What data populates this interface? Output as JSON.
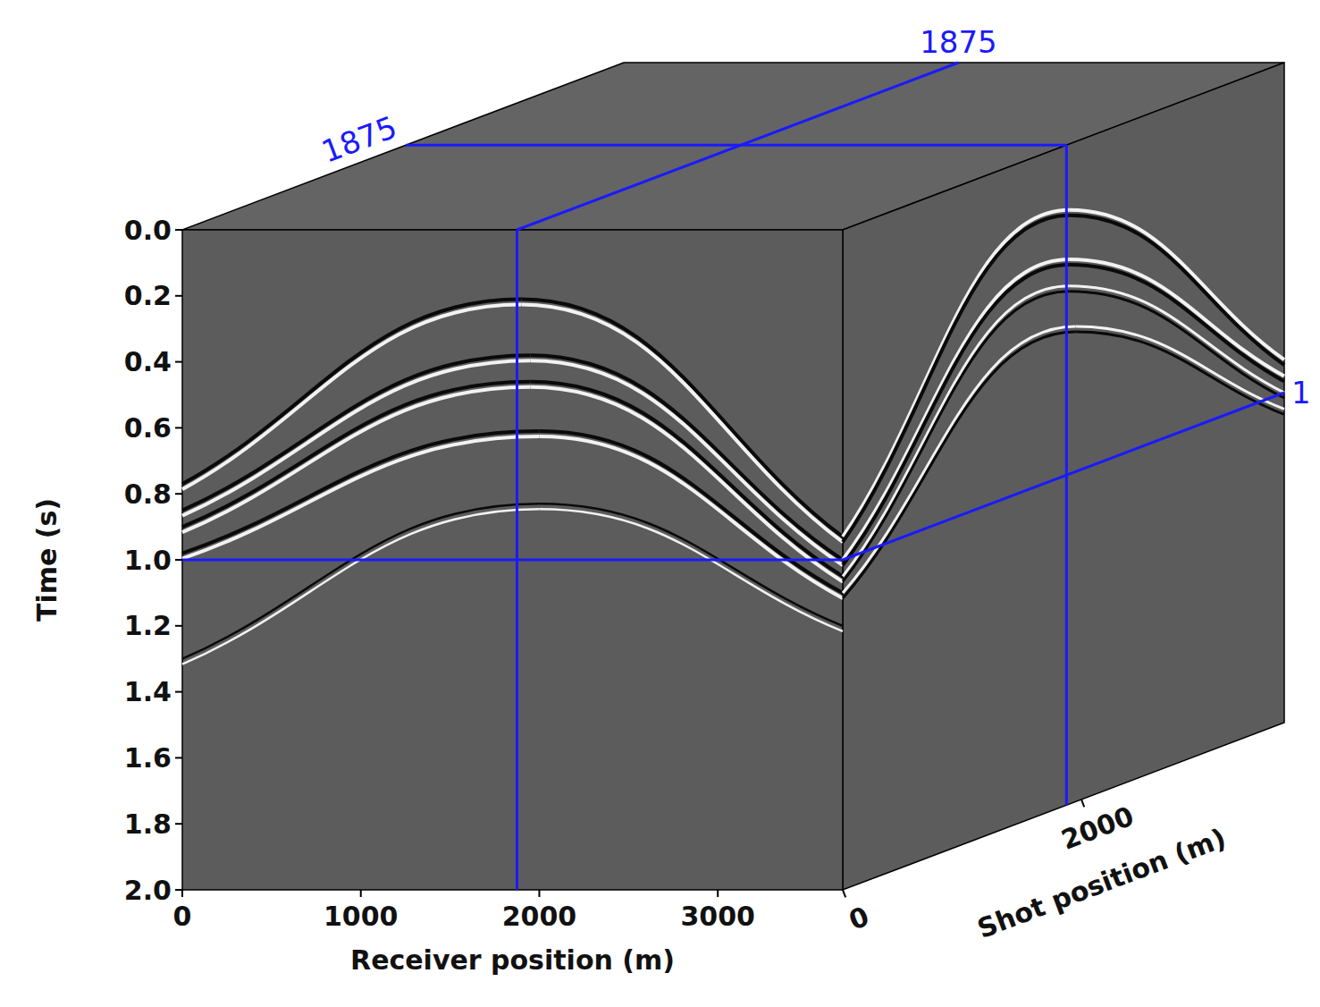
{
  "chart_data": {
    "type": "seismic_cube",
    "x_label": "Receiver position (m)",
    "y_label": "Time (s)",
    "z_label": "Shot position (m)",
    "xlim": [
      0,
      3700
    ],
    "xticks": [
      0,
      1000,
      2000,
      3000
    ],
    "ylim": [
      0,
      2
    ],
    "yticks": [
      {
        "value": 0,
        "label": "0.0"
      },
      0.2,
      0.4,
      0.6,
      0.8,
      {
        "value": 1,
        "label": "1.0"
      },
      1.2,
      1.4,
      1.6,
      1.8,
      {
        "value": 2,
        "label": "2.0"
      }
    ],
    "zlim": [
      0,
      3700
    ],
    "zticks": [
      0,
      2000
    ],
    "color": "#1a1aff",
    "slices": [
      {
        "axis": "receiver",
        "value": 1875,
        "label": "1875"
      },
      {
        "axis": "shot",
        "value": 1875,
        "label": "1875"
      },
      {
        "axis": "time",
        "value": 1,
        "label": "1"
      }
    ],
    "front_events": [
      {
        "apex_x": 1900,
        "apex_t": 0.21,
        "t_start": 0.77,
        "t_end": 0.93
      },
      {
        "apex_x": 1950,
        "apex_t": 0.38,
        "t_start": 0.85,
        "t_end": 1.0
      },
      {
        "apex_x": 1950,
        "apex_t": 0.46,
        "t_start": 0.9,
        "t_end": 1.05
      },
      {
        "apex_x": 2000,
        "apex_t": 0.61,
        "t_start": 0.98,
        "t_end": 1.1
      },
      {
        "apex_x": 2000,
        "apex_t": 0.83,
        "t_start": 1.3,
        "t_end": 1.2
      }
    ],
    "side_events": [
      {
        "apex_z": 1900,
        "apex_t": 0.2,
        "t_start": 0.93,
        "t_end": 0.9
      },
      {
        "apex_z": 1900,
        "apex_t": 0.35,
        "t_start": 1.0,
        "t_end": 0.95
      },
      {
        "apex_z": 1900,
        "apex_t": 0.43,
        "t_start": 1.05,
        "t_end": 1.0
      },
      {
        "apex_z": 1950,
        "apex_t": 0.56,
        "t_start": 1.1,
        "t_end": 1.05
      }
    ]
  }
}
